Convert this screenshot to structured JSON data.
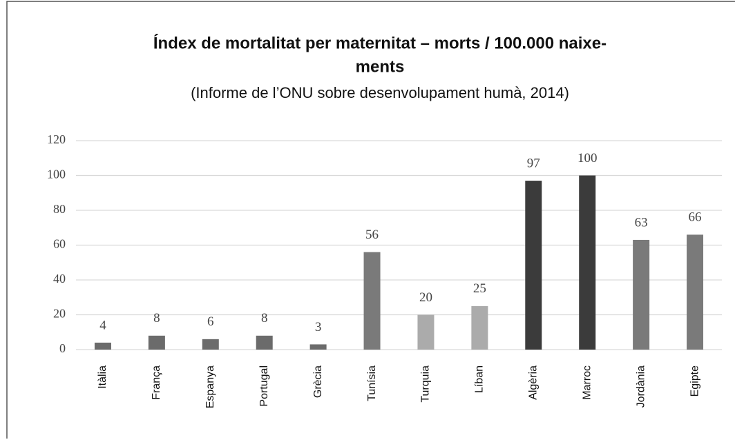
{
  "chart_data": {
    "type": "bar",
    "title": [
      "Índex de mortalitat per maternitat – morts / 100.000 naixe-",
      "ments"
    ],
    "subtitle": "(Informe de l’ONU sobre desenvolupament humà, 2014)",
    "categories": [
      "Itàlia",
      "França",
      "Espanya",
      "Portugal",
      "Grècia",
      "Tunísia",
      "Turquia",
      "Líban",
      "Algèria",
      "Marroc",
      "Jordània",
      "Egipte"
    ],
    "values": [
      4,
      8,
      6,
      8,
      3,
      56,
      20,
      25,
      97,
      100,
      63,
      66
    ],
    "colors": [
      "#6b6b6b",
      "#6b6b6b",
      "#6b6b6b",
      "#6b6b6b",
      "#6b6b6b",
      "#7a7a7a",
      "#ababab",
      "#ababab",
      "#3b3b3b",
      "#3b3b3b",
      "#7a7a7a",
      "#7a7a7a"
    ],
    "ylim": [
      0,
      120
    ],
    "yticks": [
      0,
      20,
      40,
      60,
      80,
      100,
      120
    ],
    "grid": true
  }
}
